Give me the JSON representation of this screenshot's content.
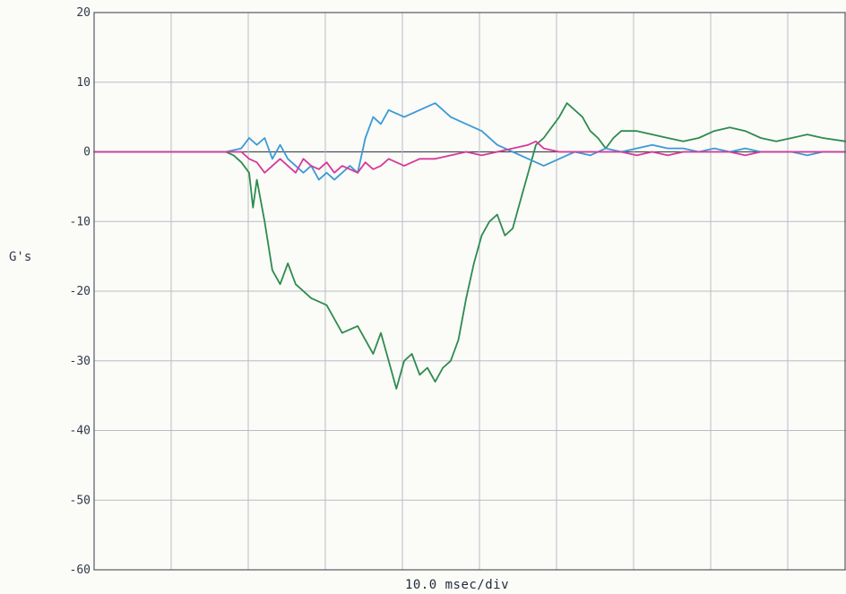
{
  "chart_data": {
    "type": "line",
    "title": "",
    "ylabel": "G's",
    "xlabel": "10.0 msec/div",
    "ylim": [
      -60,
      20
    ],
    "yticks": [
      20,
      10,
      0,
      -10,
      -20,
      -30,
      -40,
      -50,
      -60
    ],
    "ytick_labels": [
      "20",
      "10",
      "0",
      "-10",
      "-20",
      "-30",
      "-40",
      "-50",
      "-60"
    ],
    "x_unit": "msec",
    "xlim": [
      0,
      97
    ],
    "x_divisions": 10,
    "grid": true,
    "legend": "none",
    "series": [
      {
        "color": "#2e8b4e",
        "x": [
          0,
          10,
          17,
          18,
          19,
          20,
          20.5,
          21,
          22,
          23,
          24,
          25,
          26,
          28,
          30,
          32,
          34,
          36,
          37,
          38,
          39,
          40,
          41,
          42,
          43,
          44,
          45,
          46,
          47,
          48,
          49,
          50,
          51,
          52,
          53,
          54,
          55,
          56,
          57,
          58,
          60,
          61,
          62,
          63,
          64,
          65,
          66,
          67,
          68,
          70,
          72,
          74,
          76,
          78,
          80,
          82,
          84,
          86,
          88,
          90,
          92,
          94,
          97
        ],
        "y": [
          0,
          0,
          0,
          -0.5,
          -1.5,
          -3,
          -8,
          -4,
          -10,
          -17,
          -19,
          -16,
          -19,
          -21,
          -22,
          -26,
          -25,
          -29,
          -26,
          -30,
          -34,
          -30,
          -29,
          -32,
          -31,
          -33,
          -31,
          -30,
          -27,
          -21,
          -16,
          -12,
          -10,
          -9,
          -12,
          -11,
          -7,
          -3,
          1,
          2,
          5,
          7,
          6,
          5,
          3,
          2,
          0.5,
          2,
          3,
          3,
          2.5,
          2,
          1.5,
          2,
          3,
          3.5,
          3,
          2,
          1.5,
          2,
          2.5,
          2,
          1.5
        ]
      },
      {
        "color": "#3c9ad6",
        "x": [
          0,
          10,
          17,
          19,
          20,
          21,
          22,
          23,
          24,
          25,
          26,
          27,
          28,
          29,
          30,
          31,
          32,
          33,
          34,
          35,
          36,
          37,
          38,
          40,
          42,
          44,
          46,
          48,
          50,
          52,
          54,
          56,
          58,
          60,
          62,
          64,
          66,
          68,
          70,
          72,
          74,
          76,
          78,
          80,
          82,
          84,
          86,
          88,
          90,
          92,
          94,
          97
        ],
        "y": [
          0,
          0,
          0,
          0.5,
          2,
          1,
          2,
          -1,
          1,
          -1,
          -2,
          -3,
          -2,
          -4,
          -3,
          -4,
          -3,
          -2,
          -3,
          2,
          5,
          4,
          6,
          5,
          6,
          7,
          5,
          4,
          3,
          1,
          0,
          -1,
          -2,
          -1,
          0,
          -0.5,
          0.5,
          0,
          0.5,
          1,
          0.5,
          0.5,
          0,
          0.5,
          0,
          0.5,
          0,
          0,
          0,
          -0.5,
          0,
          0
        ]
      },
      {
        "color": "#d63a9a",
        "x": [
          0,
          10,
          17,
          19,
          20,
          21,
          22,
          23,
          24,
          25,
          26,
          27,
          28,
          29,
          30,
          31,
          32,
          33,
          34,
          35,
          36,
          37,
          38,
          40,
          42,
          44,
          46,
          48,
          50,
          52,
          54,
          56,
          57,
          58,
          60,
          62,
          64,
          66,
          68,
          70,
          72,
          74,
          76,
          78,
          80,
          82,
          84,
          86,
          88,
          90,
          92,
          94,
          97
        ],
        "y": [
          0,
          0,
          0,
          0,
          -1,
          -1.5,
          -3,
          -2,
          -1,
          -2,
          -3,
          -1,
          -2,
          -2.5,
          -1.5,
          -3,
          -2,
          -2.5,
          -3,
          -1.5,
          -2.5,
          -2,
          -1,
          -2,
          -1,
          -1,
          -0.5,
          0,
          -0.5,
          0,
          0.5,
          1,
          1.5,
          0.5,
          0,
          0,
          0,
          0,
          0,
          -0.5,
          0,
          -0.5,
          0,
          0,
          0,
          0,
          -0.5,
          0,
          0,
          0,
          0,
          0,
          0
        ]
      }
    ]
  }
}
